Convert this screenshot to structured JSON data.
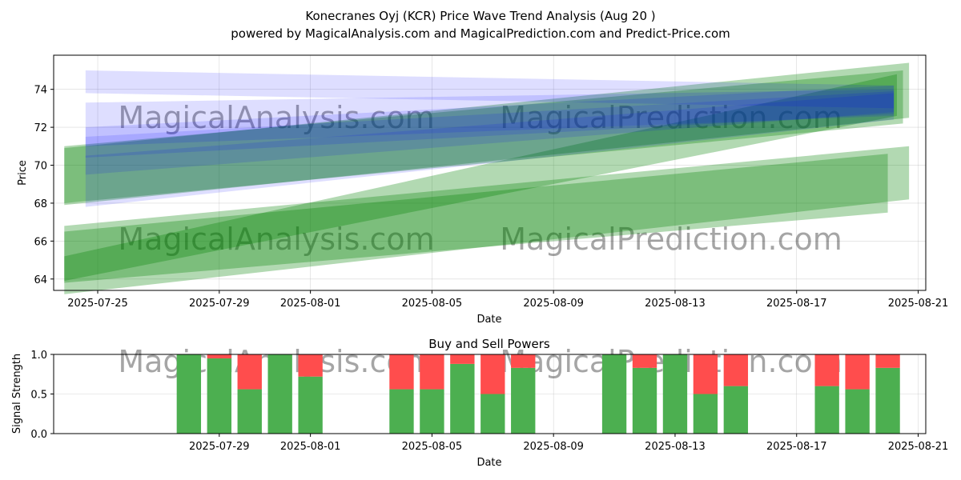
{
  "header": {
    "title": "Konecranes Oyj (KCR) Price Wave Trend Analysis (Aug 20 )",
    "subtitle": "powered by MagicalAnalysis.com and MagicalPrediction.com and Predict-Price.com"
  },
  "watermarks": [
    "MagicalAnalysis.com",
    "MagicalPrediction.com"
  ],
  "colors": {
    "green_band": "#008000",
    "blue_band": "#0000ff",
    "buy": "#4caf50",
    "sell": "#ff4d4d",
    "grid": "#b0b0b0"
  },
  "chart_data": [
    {
      "type": "area",
      "title": "",
      "xlabel": "Date",
      "ylabel": "Price",
      "x_start": "2025-07-23",
      "xlim_days": [
        0.55,
        29.25
      ],
      "ylim": [
        63.4,
        75.8
      ],
      "xticks": [
        {
          "day": 2,
          "label": "2025-07-25"
        },
        {
          "day": 6,
          "label": "2025-07-29"
        },
        {
          "day": 9,
          "label": "2025-08-01"
        },
        {
          "day": 13,
          "label": "2025-08-05"
        },
        {
          "day": 17,
          "label": "2025-08-09"
        },
        {
          "day": 21,
          "label": "2025-08-13"
        },
        {
          "day": 25,
          "label": "2025-08-17"
        },
        {
          "day": 29,
          "label": "2025-08-21"
        }
      ],
      "yticks": [
        64,
        66,
        68,
        70,
        72,
        74
      ],
      "grid": true,
      "green_bands": [
        {
          "x": [
            0.9,
            28.7
          ],
          "upper": [
            70.9,
            75.4
          ],
          "lower": [
            67.9,
            72.5
          ]
        },
        {
          "x": [
            0.9,
            28.7
          ],
          "upper": [
            66.8,
            71.0
          ],
          "lower": [
            63.2,
            68.2
          ]
        },
        {
          "x": [
            0.9,
            28.3
          ],
          "upper": [
            65.2,
            74.8
          ],
          "lower": [
            63.9,
            72.6
          ]
        },
        {
          "x": [
            0.9,
            28.5
          ],
          "upper": [
            71.0,
            75.0
          ],
          "lower": [
            68.0,
            72.2
          ]
        },
        {
          "x": [
            0.9,
            28.0
          ],
          "upper": [
            66.5,
            70.6
          ],
          "lower": [
            63.8,
            67.5
          ]
        }
      ],
      "blue_bands": [
        {
          "x": [
            1.6,
            28.2
          ],
          "upper": [
            75.0,
            74.2
          ],
          "lower": [
            73.8,
            73.0
          ]
        },
        {
          "x": [
            1.6,
            28.2
          ],
          "upper": [
            73.3,
            74.0
          ],
          "lower": [
            71.0,
            72.6
          ]
        },
        {
          "x": [
            1.6,
            28.2
          ],
          "upper": [
            72.0,
            74.2
          ],
          "lower": [
            70.4,
            72.7
          ]
        },
        {
          "x": [
            1.6,
            28.2
          ],
          "upper": [
            70.5,
            73.8
          ],
          "lower": [
            67.8,
            72.4
          ]
        },
        {
          "x": [
            1.6,
            28.2
          ],
          "upper": [
            71.5,
            73.9
          ],
          "lower": [
            69.5,
            72.8
          ]
        }
      ]
    },
    {
      "type": "bar",
      "title": "Buy and Sell Powers",
      "xlabel": "Date",
      "ylabel": "Signal Strength",
      "ylim": [
        0.0,
        1.0
      ],
      "yticks": [
        "0.0",
        "0.5",
        "1.0"
      ],
      "xticks": [
        {
          "day": 6,
          "label": "2025-07-29"
        },
        {
          "day": 9,
          "label": "2025-08-01"
        },
        {
          "day": 13,
          "label": "2025-08-05"
        },
        {
          "day": 17,
          "label": "2025-08-09"
        },
        {
          "day": 21,
          "label": "2025-08-13"
        },
        {
          "day": 25,
          "label": "2025-08-17"
        },
        {
          "day": 29,
          "label": "2025-08-21"
        }
      ],
      "series": [
        {
          "name": "Buy",
          "values": [
            1.0,
            0.95,
            0.56,
            1.0,
            0.72,
            0.56,
            0.56,
            0.88,
            0.5,
            0.83,
            1.0,
            0.83,
            1.0,
            0.5,
            0.6,
            0.6,
            0.56,
            0.83
          ]
        },
        {
          "name": "Sell",
          "values": [
            0.0,
            0.05,
            0.44,
            0.0,
            0.28,
            0.44,
            0.44,
            0.12,
            0.5,
            0.17,
            0.0,
            0.17,
            0.0,
            0.5,
            0.4,
            0.4,
            0.44,
            0.17
          ]
        }
      ],
      "bar_days": [
        5,
        6,
        7,
        8,
        9,
        12,
        13,
        14,
        15,
        16,
        19,
        20,
        21,
        22,
        23,
        26,
        27,
        28
      ]
    }
  ]
}
